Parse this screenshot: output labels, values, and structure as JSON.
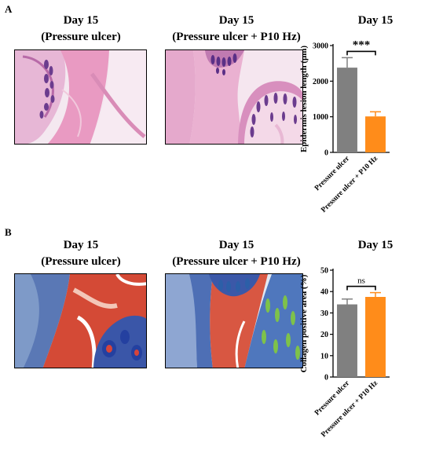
{
  "panels": [
    {
      "label": "A",
      "image_titles": [
        {
          "line1": "Day 15",
          "line2": "(Pressure ulcer)"
        },
        {
          "line1": "Day 15",
          "line2": "(Pressure ulcer + P10 Hz)"
        }
      ],
      "stain": "H&E"
    },
    {
      "label": "B",
      "image_titles": [
        {
          "line1": "Day 15",
          "line2": "(Pressure ulcer)"
        },
        {
          "line1": "Day 15",
          "line2": "(Pressure ulcer + P10 Hz)"
        }
      ],
      "stain": "Masson's trichrome"
    }
  ],
  "chart_data": [
    {
      "type": "bar",
      "title": "Day 15",
      "categories": [
        "Pressure ulcer",
        "Pressure ulcer + P10 Hz"
      ],
      "values": [
        2380,
        1010
      ],
      "errors": [
        280,
        130
      ],
      "colors": [
        "#808080",
        "#ff8c1a"
      ],
      "xlabel": "",
      "ylabel": "Epidermis lesion length (μm)",
      "ylim": [
        0,
        3000
      ],
      "yticks": [
        0,
        1000,
        2000,
        3000
      ],
      "significance": "***",
      "grid": false
    },
    {
      "type": "bar",
      "title": "Day 15",
      "categories": [
        "Pressure ulcer",
        "Pressure ulcer + P10 Hz"
      ],
      "values": [
        34,
        37.5
      ],
      "errors": [
        2.5,
        2
      ],
      "colors": [
        "#808080",
        "#ff8c1a"
      ],
      "xlabel": "",
      "ylabel": "Collagen positive area (%)",
      "ylim": [
        0,
        50
      ],
      "yticks": [
        0,
        10,
        20,
        30,
        40,
        50
      ],
      "significance": "ns",
      "grid": false
    }
  ]
}
